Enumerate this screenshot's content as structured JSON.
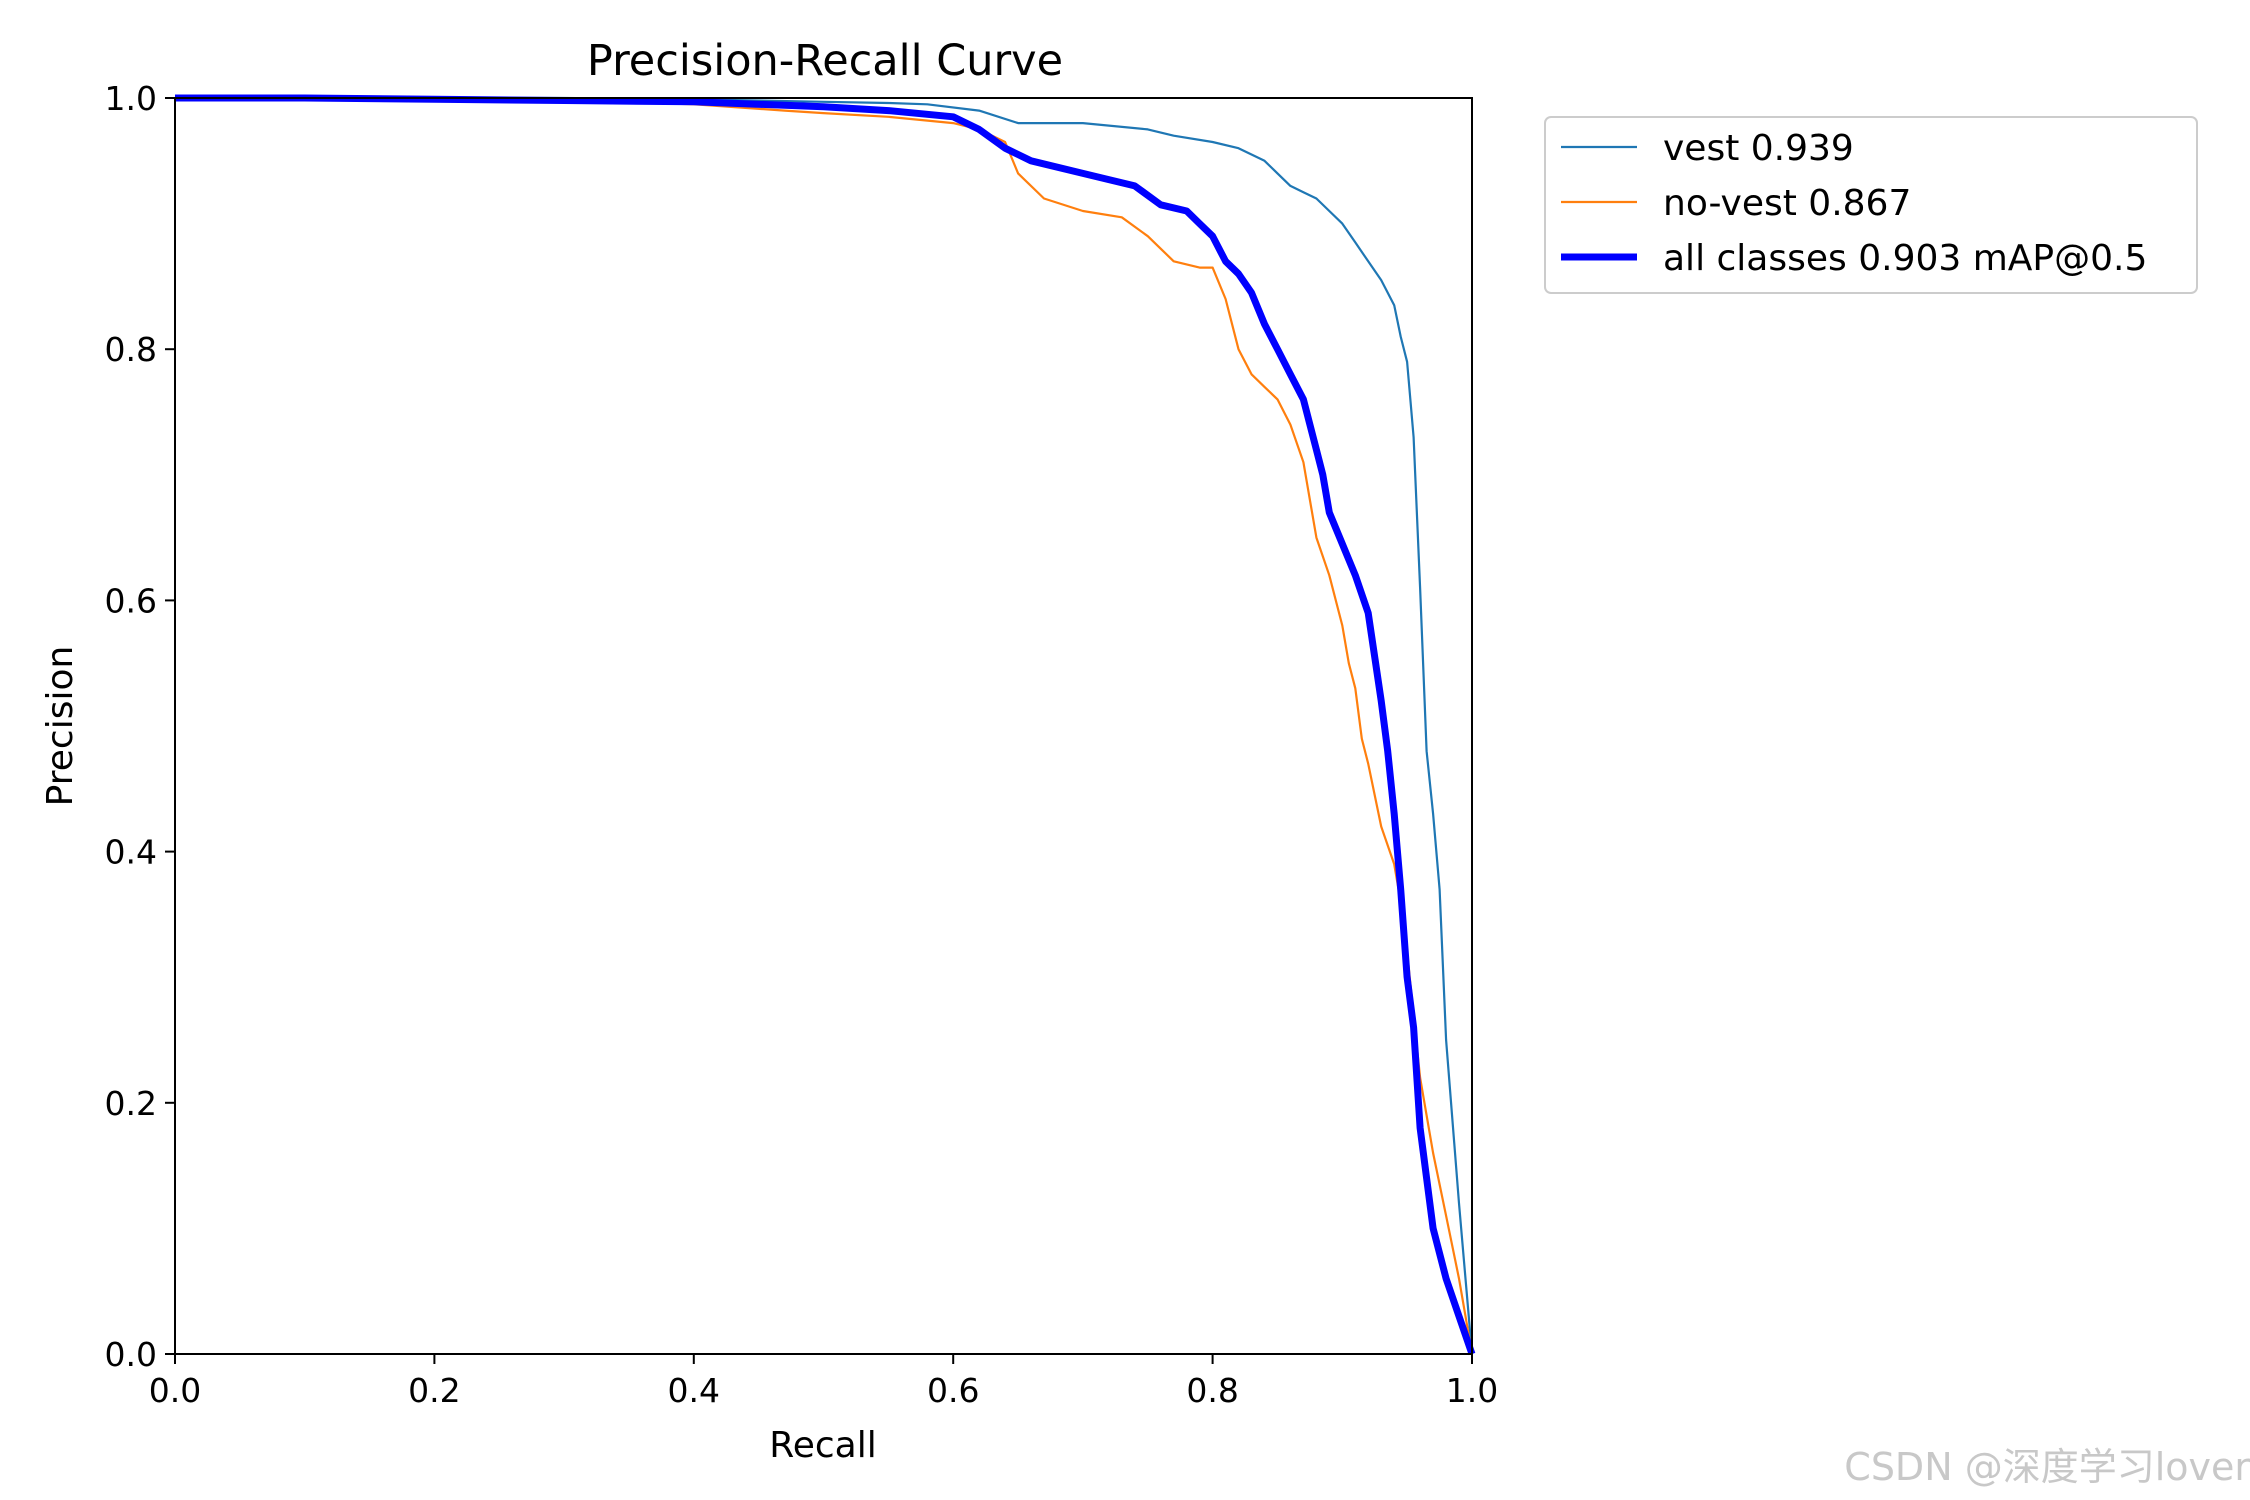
{
  "chart_data": {
    "type": "line",
    "title": "Precision-Recall Curve",
    "xlabel": "Recall",
    "ylabel": "Precision",
    "xlim": [
      0.0,
      1.0
    ],
    "ylim": [
      0.0,
      1.0
    ],
    "xticks": [
      "0.0",
      "0.2",
      "0.4",
      "0.6",
      "0.8",
      "1.0"
    ],
    "yticks": [
      "0.0",
      "0.2",
      "0.4",
      "0.6",
      "0.8",
      "1.0"
    ],
    "grid": false,
    "legend_position": "outside-right-top",
    "series": [
      {
        "name": "vest 0.939",
        "color": "#1f77b4",
        "line_width": "thin",
        "x": [
          0.0,
          0.1,
          0.2,
          0.3,
          0.4,
          0.5,
          0.55,
          0.58,
          0.62,
          0.65,
          0.7,
          0.75,
          0.77,
          0.8,
          0.82,
          0.84,
          0.85,
          0.86,
          0.87,
          0.88,
          0.89,
          0.9,
          0.91,
          0.92,
          0.93,
          0.94,
          0.945,
          0.95,
          0.955,
          0.96,
          0.965,
          0.97,
          0.975,
          0.98,
          0.99,
          1.0
        ],
        "y": [
          1.0,
          1.0,
          1.0,
          1.0,
          0.999,
          0.997,
          0.996,
          0.995,
          0.99,
          0.98,
          0.98,
          0.975,
          0.97,
          0.965,
          0.96,
          0.95,
          0.94,
          0.93,
          0.925,
          0.92,
          0.91,
          0.9,
          0.885,
          0.87,
          0.855,
          0.835,
          0.81,
          0.79,
          0.73,
          0.61,
          0.48,
          0.43,
          0.37,
          0.25,
          0.12,
          0.0
        ]
      },
      {
        "name": "no-vest 0.867",
        "color": "#ff7f0e",
        "line_width": "thin",
        "x": [
          0.0,
          0.1,
          0.2,
          0.3,
          0.4,
          0.47,
          0.5,
          0.55,
          0.6,
          0.62,
          0.64,
          0.65,
          0.67,
          0.7,
          0.73,
          0.75,
          0.77,
          0.79,
          0.8,
          0.81,
          0.82,
          0.83,
          0.84,
          0.85,
          0.86,
          0.87,
          0.875,
          0.88,
          0.89,
          0.9,
          0.905,
          0.91,
          0.915,
          0.92,
          0.93,
          0.94,
          0.945,
          0.95,
          0.955,
          0.96,
          0.97,
          0.98,
          0.99,
          1.0
        ],
        "y": [
          1.0,
          1.0,
          1.0,
          0.998,
          0.995,
          0.99,
          0.988,
          0.985,
          0.98,
          0.975,
          0.965,
          0.94,
          0.92,
          0.91,
          0.905,
          0.89,
          0.87,
          0.865,
          0.865,
          0.84,
          0.8,
          0.78,
          0.77,
          0.76,
          0.74,
          0.71,
          0.68,
          0.65,
          0.62,
          0.58,
          0.55,
          0.53,
          0.49,
          0.47,
          0.42,
          0.39,
          0.36,
          0.32,
          0.27,
          0.22,
          0.16,
          0.11,
          0.06,
          0.0
        ]
      },
      {
        "name": "all classes 0.903 mAP@0.5",
        "color": "#0000ff",
        "line_width": "thick",
        "x": [
          0.0,
          0.1,
          0.2,
          0.3,
          0.4,
          0.5,
          0.55,
          0.6,
          0.62,
          0.64,
          0.66,
          0.7,
          0.72,
          0.74,
          0.76,
          0.78,
          0.79,
          0.8,
          0.81,
          0.82,
          0.83,
          0.84,
          0.85,
          0.86,
          0.87,
          0.875,
          0.88,
          0.885,
          0.89,
          0.9,
          0.91,
          0.92,
          0.925,
          0.93,
          0.935,
          0.94,
          0.945,
          0.95,
          0.955,
          0.96,
          0.965,
          0.97,
          0.975,
          0.98,
          0.99,
          1.0
        ],
        "y": [
          1.0,
          1.0,
          0.999,
          0.998,
          0.997,
          0.993,
          0.99,
          0.985,
          0.975,
          0.96,
          0.95,
          0.94,
          0.935,
          0.93,
          0.915,
          0.91,
          0.9,
          0.89,
          0.87,
          0.86,
          0.845,
          0.82,
          0.8,
          0.78,
          0.76,
          0.74,
          0.72,
          0.7,
          0.67,
          0.645,
          0.62,
          0.59,
          0.555,
          0.52,
          0.48,
          0.43,
          0.37,
          0.3,
          0.26,
          0.18,
          0.14,
          0.1,
          0.08,
          0.06,
          0.03,
          0.0
        ]
      }
    ]
  },
  "watermark": "CSDN @深度学习lover"
}
